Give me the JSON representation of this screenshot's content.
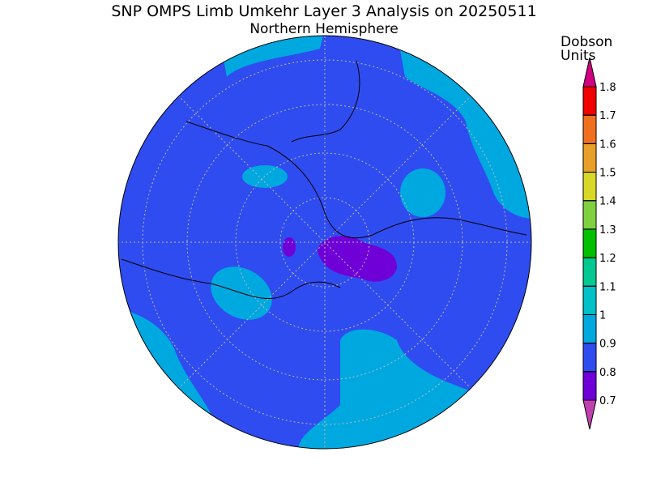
{
  "header": {
    "title": "SNP OMPS Limb Umkehr Layer 3 Analysis on 20250511",
    "subtitle": "Northern Hemisphere"
  },
  "colorbar": {
    "label": [
      "Dobson",
      "Units"
    ],
    "ticks": [
      0.7,
      0.8,
      0.9,
      1,
      1.1,
      1.2,
      1.3,
      1.4,
      1.5,
      1.6,
      1.7,
      1.8
    ],
    "colors": [
      "#c040b0",
      "#7000d8",
      "#2f4cf0",
      "#00a8e0",
      "#00c0c8",
      "#00c890",
      "#00c000",
      "#80d040",
      "#d8d828",
      "#e8a028",
      "#f07020",
      "#f00000",
      "#d00080"
    ]
  }
}
